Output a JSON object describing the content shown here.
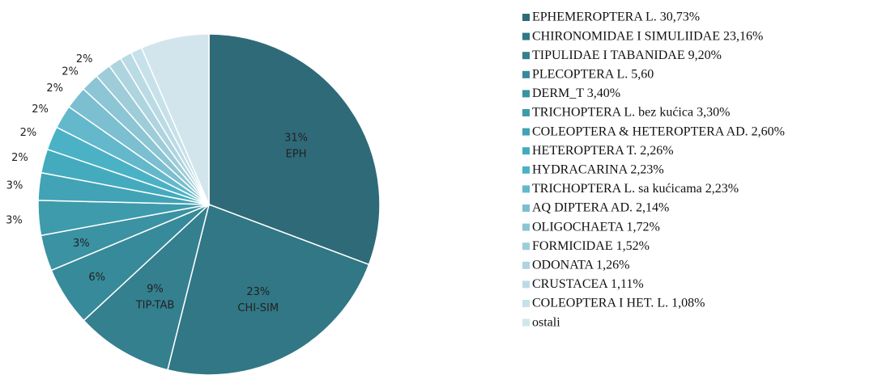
{
  "chart_data": {
    "type": "pie",
    "categories": [
      "EPHEMEROPTERA L. 30,73%",
      "CHIRONOMIDAE I SIMULIIDAE 23,16%",
      "TIPULIDAE I TABANIDAE 9,20%",
      "PLECOPTERA L. 5,60",
      "DERM_T 3,40%",
      "TRICHOPTERA L. bez kućica 3,30%",
      "COLEOPTERA & HETEROPTERA AD. 2,60%",
      "HETEROPTERA T. 2,26%",
      "HYDRACARINA 2,23%",
      "TRICHOPTERA L. sa kućicama 2,23%",
      "AQ DIPTERA AD. 2,14%",
      "OLIGOCHAETA 1,72%",
      "FORMICIDAE 1,52%",
      "ODONATA 1,26%",
      "CRUSTACEA 1,11%",
      "COLEOPTERA I HET. L. 1,08%",
      "ostali"
    ],
    "values": [
      30.73,
      23.16,
      9.2,
      5.6,
      3.4,
      3.3,
      2.6,
      2.26,
      2.23,
      2.23,
      2.14,
      1.72,
      1.52,
      1.26,
      1.11,
      1.08,
      6.46
    ],
    "value_labels": [
      "31%",
      "23%",
      "9%",
      "6%",
      "3%",
      "3%",
      "3%",
      "2%",
      "2%",
      "2%",
      "2%",
      "2%",
      "2%",
      null,
      null,
      null,
      null
    ],
    "slice_names": [
      "EPH",
      "CHI-SIM",
      "TIP-TAB",
      null,
      null,
      null,
      null,
      null,
      null,
      null,
      null,
      null,
      null,
      null,
      null,
      null,
      null
    ],
    "colors": [
      "#2f6a78",
      "#317785",
      "#34808f",
      "#378a99",
      "#3a92a2",
      "#3d9bac",
      "#41a3b5",
      "#44abbe",
      "#4bb2c6",
      "#64b8cb",
      "#7bbfd0",
      "#8cc5d4",
      "#9ecdd9",
      "#aed4df",
      "#bbdbe4",
      "#c6e1e9",
      "#d2e5ed"
    ]
  }
}
